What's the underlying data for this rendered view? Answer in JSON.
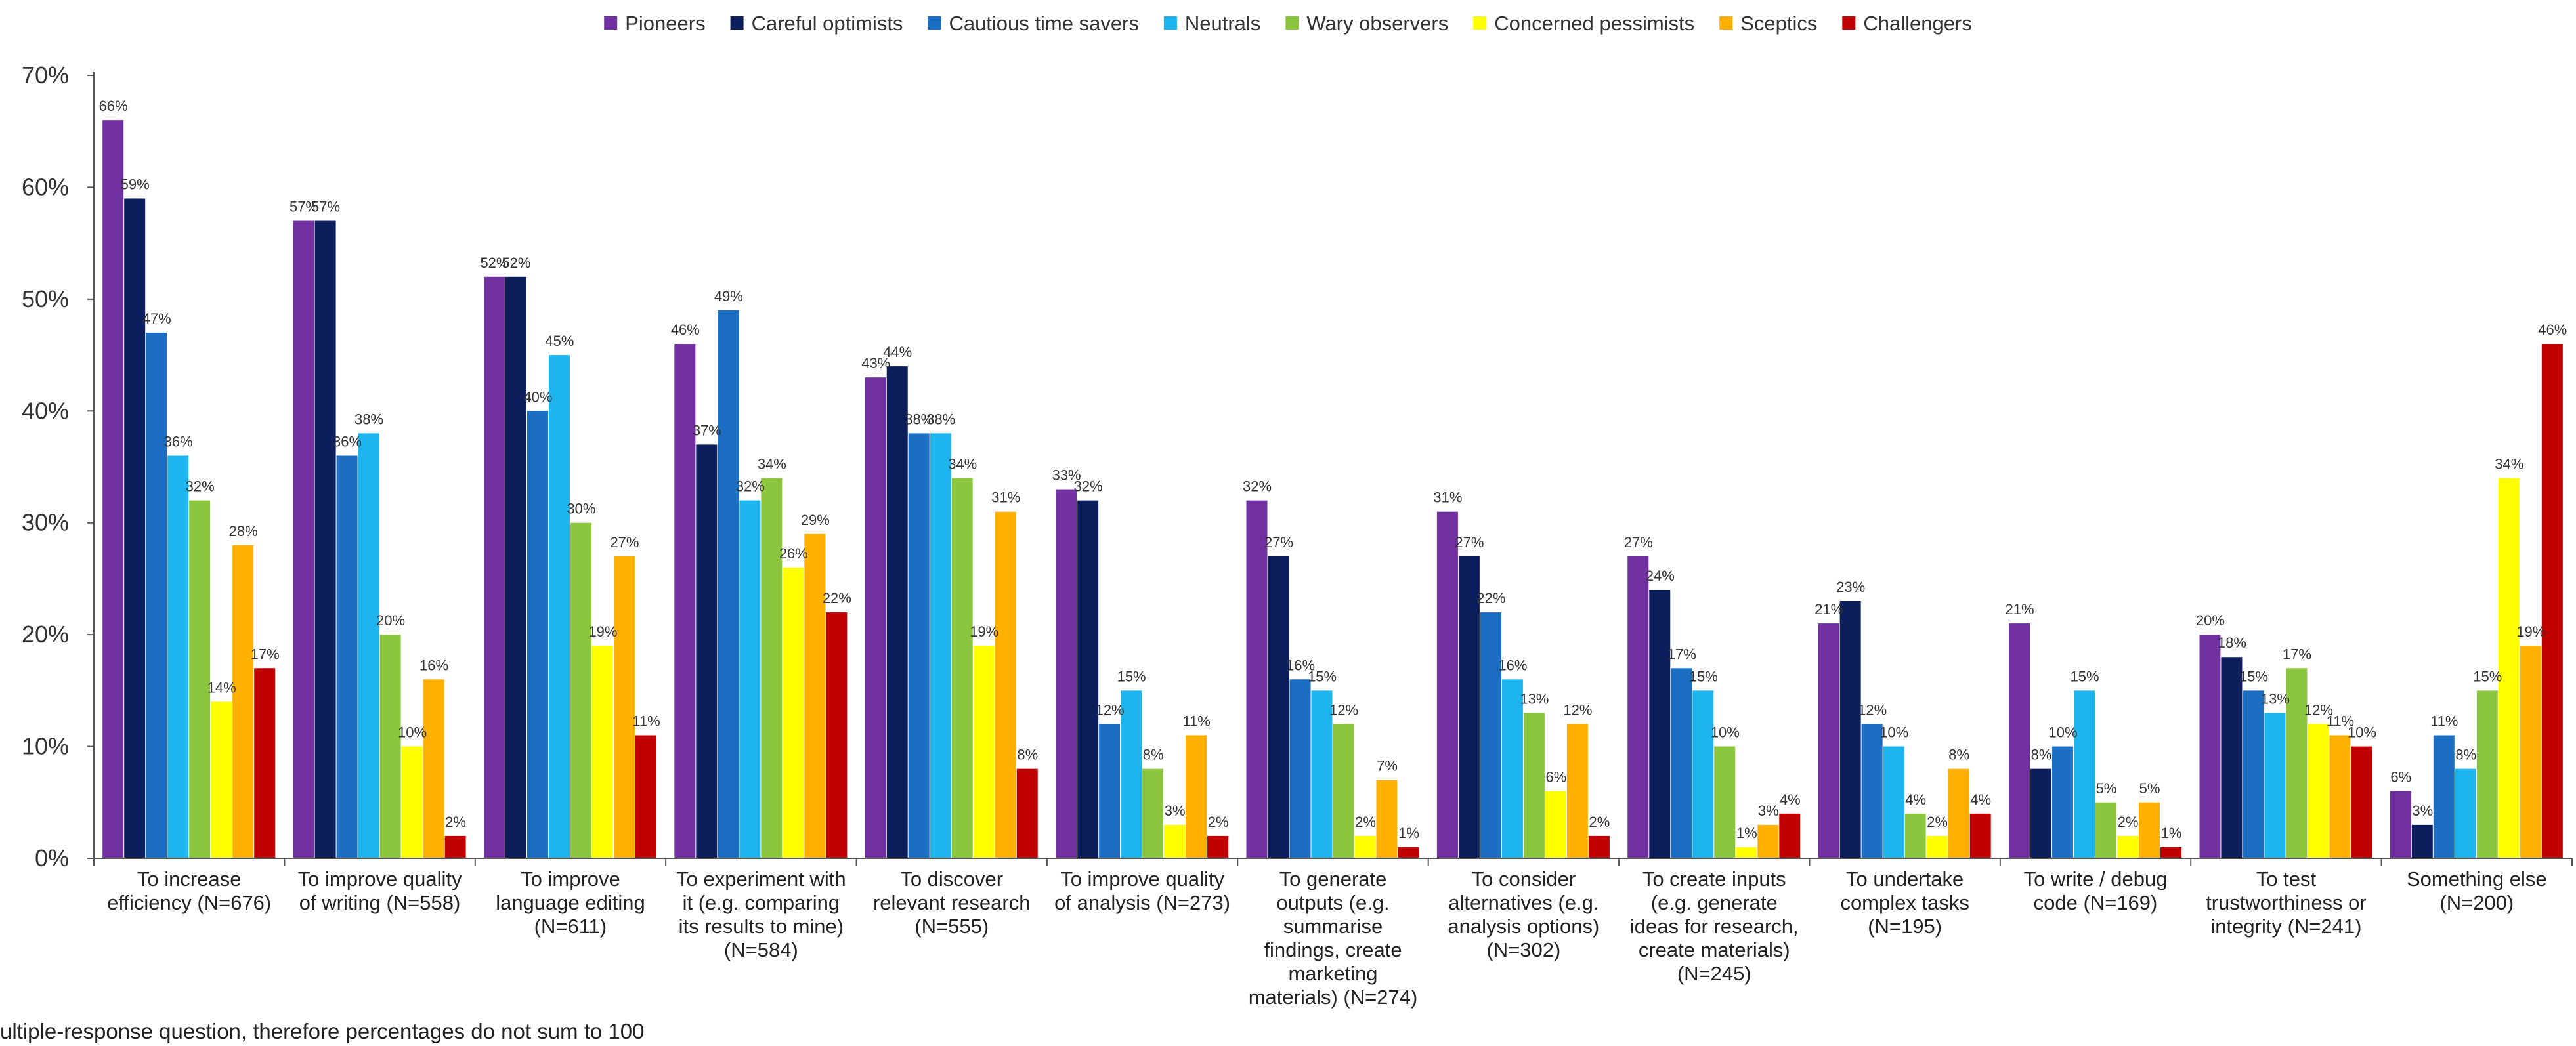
{
  "chart_data": {
    "type": "bar",
    "title": "",
    "xlabel": "",
    "ylabel": "",
    "ylim": [
      0,
      70
    ],
    "yticks": [
      0,
      10,
      20,
      30,
      40,
      50,
      60,
      70
    ],
    "y_tick_suffix": "%",
    "grid": false,
    "legend_position": "top",
    "categories": [
      [
        "To increase",
        "efficiency (N=676)"
      ],
      [
        "To improve quality",
        "of writing (N=558)"
      ],
      [
        "To improve",
        "language editing",
        "(N=611)"
      ],
      [
        "To experiment with",
        "it (e.g. comparing",
        "its results to mine)",
        "(N=584)"
      ],
      [
        "To discover",
        "relevant research",
        "(N=555)"
      ],
      [
        "To improve quality",
        "of analysis (N=273)"
      ],
      [
        "To generate",
        "outputs (e.g.",
        "summarise",
        "findings, create",
        "marketing",
        "materials) (N=274)"
      ],
      [
        "To consider",
        "alternatives (e.g.",
        "analysis options)",
        "(N=302)"
      ],
      [
        "To create inputs",
        "(e.g. generate",
        "ideas for research,",
        "create materials)",
        "(N=245)"
      ],
      [
        "To undertake",
        "complex tasks",
        "(N=195)"
      ],
      [
        "To write / debug",
        "code (N=169)"
      ],
      [
        "To test",
        "trustworthiness or",
        "integrity (N=241)"
      ],
      [
        "Something else",
        "(N=200)"
      ]
    ],
    "series": [
      {
        "name": "Pioneers",
        "color": "#7030A0",
        "values": [
          66,
          57,
          52,
          46,
          43,
          33,
          32,
          31,
          27,
          21,
          21,
          20,
          6
        ]
      },
      {
        "name": "Careful optimists",
        "color": "#0D1E5C",
        "values": [
          59,
          57,
          52,
          37,
          44,
          32,
          27,
          27,
          24,
          23,
          8,
          18,
          3
        ]
      },
      {
        "name": "Cautious time savers",
        "color": "#1B6EC2",
        "values": [
          47,
          36,
          40,
          49,
          38,
          12,
          16,
          22,
          17,
          12,
          10,
          15,
          11
        ]
      },
      {
        "name": "Neutrals",
        "color": "#1EB4EE",
        "values": [
          36,
          38,
          45,
          32,
          38,
          15,
          15,
          16,
          15,
          10,
          15,
          13,
          8
        ]
      },
      {
        "name": "Wary observers",
        "color": "#8CC63F",
        "values": [
          32,
          20,
          30,
          34,
          34,
          8,
          12,
          13,
          10,
          4,
          5,
          17,
          15
        ]
      },
      {
        "name": "Concerned pessimists",
        "color": "#FFFF00",
        "values": [
          14,
          10,
          19,
          26,
          19,
          3,
          2,
          6,
          1,
          2,
          2,
          12,
          34
        ]
      },
      {
        "name": "Sceptics",
        "color": "#FFB000",
        "values": [
          28,
          16,
          27,
          29,
          31,
          11,
          7,
          12,
          3,
          8,
          5,
          11,
          19
        ]
      },
      {
        "name": "Challengers",
        "color": "#C00000",
        "values": [
          17,
          2,
          11,
          22,
          8,
          2,
          1,
          2,
          4,
          4,
          1,
          10,
          46
        ]
      }
    ]
  },
  "footnote": "ultiple-response question, therefore percentages do not sum to 100"
}
